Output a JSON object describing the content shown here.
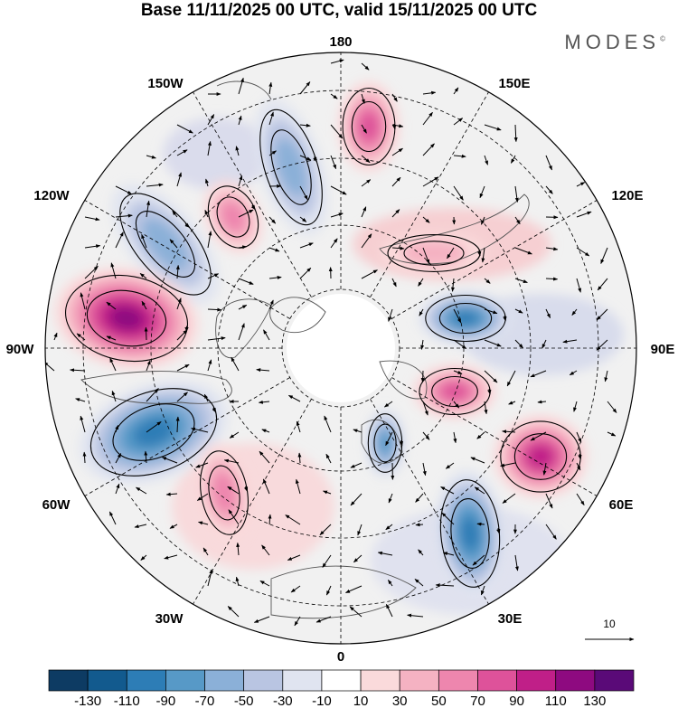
{
  "title": "Base 11/11/2025 00 UTC, valid 15/11/2025 00 UTC",
  "brand": "MODES",
  "brand_mark": "©",
  "longitude_labels": {
    "top": "180",
    "bottom": "0",
    "left": "90W",
    "right": "90E",
    "upper_left_1": "150W",
    "upper_left_2": "120W",
    "upper_right_1": "150E",
    "upper_right_2": "120E",
    "lower_left_1": "60W",
    "lower_left_2": "30W",
    "lower_right_1": "60E",
    "lower_right_2": "30E"
  },
  "reference_vector": "10",
  "colorbar": {
    "colors": [
      "#0d3b63",
      "#125a8e",
      "#2d7db6",
      "#5799c7",
      "#8bb0d8",
      "#b9c5e2",
      "#e0e4f0",
      "#ffffff",
      "#fadadb",
      "#f5b2c2",
      "#ee86ae",
      "#de529a",
      "#c01f88",
      "#8e0a80",
      "#5a0a78"
    ],
    "tick_labels": [
      "-130",
      "-110",
      "-90",
      "-70",
      "-50",
      "-30",
      "-10",
      "10",
      "30",
      "50",
      "70",
      "90",
      "110",
      "130"
    ]
  },
  "anomaly_centers": [
    {
      "name": "pos-north-pacific",
      "value": 70
    },
    {
      "name": "neg-bering",
      "value": -50
    },
    {
      "name": "pos-alaska",
      "value": 50
    },
    {
      "name": "neg-gulf-alaska",
      "value": -50
    },
    {
      "name": "pos-canada",
      "value": 110
    },
    {
      "name": "neg-north-atlantic-west",
      "value": -90
    },
    {
      "name": "pos-north-atlantic",
      "value": 50
    },
    {
      "name": "neg-scandinavia",
      "value": -70
    },
    {
      "name": "neg-eastern-europe",
      "value": -90
    },
    {
      "name": "pos-ural",
      "value": 90
    },
    {
      "name": "pos-west-siberia",
      "value": 70
    },
    {
      "name": "neg-central-siberia",
      "value": -90
    },
    {
      "name": "pos-east-siberia",
      "value": 30
    }
  ]
}
